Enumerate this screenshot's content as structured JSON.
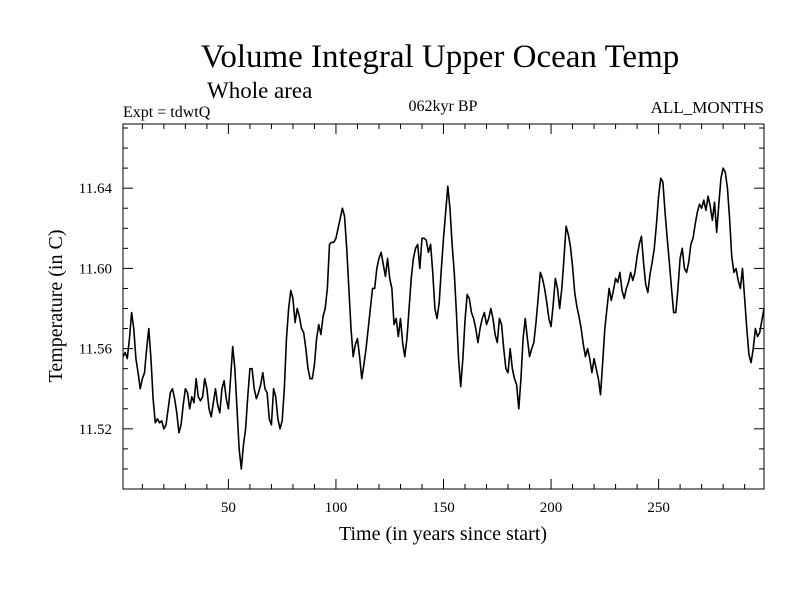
{
  "header": {
    "title": "Volume Integral Upper Ocean Temp",
    "subtitle": "Whole area",
    "experiment": "Expt = tdwtQ",
    "period": "062kyr BP",
    "months": "ALL_MONTHS"
  },
  "chart_data": {
    "type": "line",
    "title": "Volume Integral Upper Ocean Temp",
    "subtitle": "Whole area",
    "xlabel": "Time (in years since start)",
    "ylabel": "Temperature (in C)",
    "xlim": [
      1,
      299
    ],
    "ylim": [
      11.49,
      11.672
    ],
    "x_ticks": [
      50,
      100,
      150,
      200,
      250
    ],
    "x_tick_labels": [
      "50",
      "100",
      "150",
      "200",
      "250"
    ],
    "y_ticks": [
      11.52,
      11.56,
      11.6,
      11.64
    ],
    "y_tick_labels": [
      "11.52",
      "11.56",
      "11.60",
      "11.64"
    ],
    "x_minor_step": 10,
    "y_minor_step": 0.01,
    "grid": false,
    "series": [
      {
        "name": "Temperature",
        "points": [
          [
            1,
            11.556
          ],
          [
            2,
            11.558
          ],
          [
            3,
            11.555
          ],
          [
            4,
            11.565
          ],
          [
            5,
            11.578
          ],
          [
            6,
            11.57
          ],
          [
            7,
            11.555
          ],
          [
            8,
            11.548
          ],
          [
            9,
            11.54
          ],
          [
            10,
            11.545
          ],
          [
            11,
            11.548
          ],
          [
            12,
            11.56
          ],
          [
            13,
            11.57
          ],
          [
            14,
            11.555
          ],
          [
            15,
            11.535
          ],
          [
            16,
            11.523
          ],
          [
            17,
            11.525
          ],
          [
            18,
            11.523
          ],
          [
            19,
            11.524
          ],
          [
            20,
            11.52
          ],
          [
            21,
            11.522
          ],
          [
            22,
            11.53
          ],
          [
            23,
            11.538
          ],
          [
            24,
            11.54
          ],
          [
            25,
            11.535
          ],
          [
            26,
            11.528
          ],
          [
            27,
            11.518
          ],
          [
            28,
            11.522
          ],
          [
            29,
            11.532
          ],
          [
            30,
            11.54
          ],
          [
            31,
            11.538
          ],
          [
            32,
            11.53
          ],
          [
            33,
            11.536
          ],
          [
            34,
            11.533
          ],
          [
            35,
            11.545
          ],
          [
            36,
            11.536
          ],
          [
            37,
            11.534
          ],
          [
            38,
            11.536
          ],
          [
            39,
            11.545
          ],
          [
            40,
            11.54
          ],
          [
            41,
            11.53
          ],
          [
            42,
            11.526
          ],
          [
            43,
            11.533
          ],
          [
            44,
            11.54
          ],
          [
            45,
            11.532
          ],
          [
            46,
            11.528
          ],
          [
            47,
            11.54
          ],
          [
            48,
            11.544
          ],
          [
            49,
            11.535
          ],
          [
            50,
            11.53
          ],
          [
            51,
            11.545
          ],
          [
            52,
            11.561
          ],
          [
            53,
            11.55
          ],
          [
            54,
            11.53
          ],
          [
            55,
            11.51
          ],
          [
            56,
            11.5
          ],
          [
            57,
            11.512
          ],
          [
            58,
            11.52
          ],
          [
            59,
            11.536
          ],
          [
            60,
            11.55
          ],
          [
            61,
            11.55
          ],
          [
            62,
            11.54
          ],
          [
            63,
            11.535
          ],
          [
            64,
            11.538
          ],
          [
            65,
            11.542
          ],
          [
            66,
            11.548
          ],
          [
            67,
            11.54
          ],
          [
            68,
            11.538
          ],
          [
            69,
            11.525
          ],
          [
            70,
            11.522
          ],
          [
            71,
            11.54
          ],
          [
            72,
            11.536
          ],
          [
            73,
            11.525
          ],
          [
            74,
            11.52
          ],
          [
            75,
            11.524
          ],
          [
            76,
            11.54
          ],
          [
            77,
            11.565
          ],
          [
            78,
            11.58
          ],
          [
            79,
            11.589
          ],
          [
            80,
            11.585
          ],
          [
            81,
            11.573
          ],
          [
            82,
            11.58
          ],
          [
            83,
            11.576
          ],
          [
            84,
            11.57
          ],
          [
            85,
            11.568
          ],
          [
            86,
            11.56
          ],
          [
            87,
            11.55
          ],
          [
            88,
            11.545
          ],
          [
            89,
            11.545
          ],
          [
            90,
            11.552
          ],
          [
            91,
            11.565
          ],
          [
            92,
            11.572
          ],
          [
            93,
            11.567
          ],
          [
            94,
            11.576
          ],
          [
            95,
            11.58
          ],
          [
            96,
            11.59
          ],
          [
            97,
            11.612
          ],
          [
            98,
            11.613
          ],
          [
            99,
            11.613
          ],
          [
            100,
            11.615
          ],
          [
            101,
            11.62
          ],
          [
            102,
            11.625
          ],
          [
            103,
            11.63
          ],
          [
            104,
            11.626
          ],
          [
            105,
            11.61
          ],
          [
            106,
            11.59
          ],
          [
            107,
            11.57
          ],
          [
            108,
            11.556
          ],
          [
            109,
            11.562
          ],
          [
            110,
            11.565
          ],
          [
            111,
            11.556
          ],
          [
            112,
            11.545
          ],
          [
            113,
            11.552
          ],
          [
            114,
            11.56
          ],
          [
            115,
            11.57
          ],
          [
            116,
            11.58
          ],
          [
            117,
            11.59
          ],
          [
            118,
            11.59
          ],
          [
            119,
            11.6
          ],
          [
            120,
            11.605
          ],
          [
            121,
            11.608
          ],
          [
            122,
            11.602
          ],
          [
            123,
            11.596
          ],
          [
            124,
            11.605
          ],
          [
            125,
            11.595
          ],
          [
            126,
            11.59
          ],
          [
            127,
            11.572
          ],
          [
            128,
            11.575
          ],
          [
            129,
            11.566
          ],
          [
            130,
            11.575
          ],
          [
            131,
            11.563
          ],
          [
            132,
            11.556
          ],
          [
            133,
            11.565
          ],
          [
            134,
            11.58
          ],
          [
            135,
            11.595
          ],
          [
            136,
            11.605
          ],
          [
            137,
            11.61
          ],
          [
            138,
            11.612
          ],
          [
            139,
            11.6
          ],
          [
            140,
            11.615
          ],
          [
            141,
            11.615
          ],
          [
            142,
            11.614
          ],
          [
            143,
            11.608
          ],
          [
            144,
            11.612
          ],
          [
            145,
            11.598
          ],
          [
            146,
            11.58
          ],
          [
            147,
            11.575
          ],
          [
            148,
            11.583
          ],
          [
            149,
            11.6
          ],
          [
            150,
            11.615
          ],
          [
            151,
            11.628
          ],
          [
            152,
            11.641
          ],
          [
            153,
            11.63
          ],
          [
            154,
            11.612
          ],
          [
            155,
            11.598
          ],
          [
            156,
            11.578
          ],
          [
            157,
            11.555
          ],
          [
            158,
            11.541
          ],
          [
            159,
            11.555
          ],
          [
            160,
            11.574
          ],
          [
            161,
            11.587
          ],
          [
            162,
            11.585
          ],
          [
            163,
            11.578
          ],
          [
            164,
            11.575
          ],
          [
            165,
            11.57
          ],
          [
            166,
            11.563
          ],
          [
            167,
            11.57
          ],
          [
            168,
            11.575
          ],
          [
            169,
            11.578
          ],
          [
            170,
            11.572
          ],
          [
            171,
            11.575
          ],
          [
            172,
            11.58
          ],
          [
            173,
            11.575
          ],
          [
            174,
            11.567
          ],
          [
            175,
            11.563
          ],
          [
            176,
            11.575
          ],
          [
            177,
            11.572
          ],
          [
            178,
            11.56
          ],
          [
            179,
            11.55
          ],
          [
            180,
            11.548
          ],
          [
            181,
            11.56
          ],
          [
            182,
            11.55
          ],
          [
            183,
            11.545
          ],
          [
            184,
            11.542
          ],
          [
            185,
            11.53
          ],
          [
            186,
            11.545
          ],
          [
            187,
            11.565
          ],
          [
            188,
            11.575
          ],
          [
            189,
            11.565
          ],
          [
            190,
            11.556
          ],
          [
            191,
            11.56
          ],
          [
            192,
            11.563
          ],
          [
            193,
            11.573
          ],
          [
            194,
            11.585
          ],
          [
            195,
            11.598
          ],
          [
            196,
            11.595
          ],
          [
            197,
            11.59
          ],
          [
            198,
            11.583
          ],
          [
            199,
            11.575
          ],
          [
            200,
            11.571
          ],
          [
            201,
            11.582
          ],
          [
            202,
            11.595
          ],
          [
            203,
            11.59
          ],
          [
            204,
            11.58
          ],
          [
            205,
            11.59
          ],
          [
            206,
            11.605
          ],
          [
            207,
            11.621
          ],
          [
            208,
            11.617
          ],
          [
            209,
            11.611
          ],
          [
            210,
            11.601
          ],
          [
            211,
            11.588
          ],
          [
            212,
            11.581
          ],
          [
            213,
            11.576
          ],
          [
            214,
            11.57
          ],
          [
            215,
            11.562
          ],
          [
            216,
            11.556
          ],
          [
            217,
            11.56
          ],
          [
            218,
            11.555
          ],
          [
            219,
            11.548
          ],
          [
            220,
            11.555
          ],
          [
            221,
            11.55
          ],
          [
            222,
            11.545
          ],
          [
            223,
            11.537
          ],
          [
            224,
            11.553
          ],
          [
            225,
            11.57
          ],
          [
            226,
            11.58
          ],
          [
            227,
            11.59
          ],
          [
            228,
            11.584
          ],
          [
            229,
            11.589
          ],
          [
            230,
            11.595
          ],
          [
            231,
            11.593
          ],
          [
            232,
            11.598
          ],
          [
            233,
            11.589
          ],
          [
            234,
            11.585
          ],
          [
            235,
            11.59
          ],
          [
            236,
            11.593
          ],
          [
            237,
            11.598
          ],
          [
            238,
            11.594
          ],
          [
            239,
            11.598
          ],
          [
            240,
            11.606
          ],
          [
            241,
            11.612
          ],
          [
            242,
            11.616
          ],
          [
            243,
            11.603
          ],
          [
            244,
            11.592
          ],
          [
            245,
            11.588
          ],
          [
            246,
            11.597
          ],
          [
            247,
            11.603
          ],
          [
            248,
            11.61
          ],
          [
            249,
            11.622
          ],
          [
            250,
            11.636
          ],
          [
            251,
            11.645
          ],
          [
            252,
            11.643
          ],
          [
            253,
            11.628
          ],
          [
            254,
            11.615
          ],
          [
            255,
            11.603
          ],
          [
            256,
            11.59
          ],
          [
            257,
            11.578
          ],
          [
            258,
            11.578
          ],
          [
            259,
            11.59
          ],
          [
            260,
            11.605
          ],
          [
            261,
            11.61
          ],
          [
            262,
            11.6
          ],
          [
            263,
            11.598
          ],
          [
            264,
            11.603
          ],
          [
            265,
            11.612
          ],
          [
            266,
            11.615
          ],
          [
            267,
            11.622
          ],
          [
            268,
            11.628
          ],
          [
            269,
            11.632
          ],
          [
            270,
            11.63
          ],
          [
            271,
            11.634
          ],
          [
            272,
            11.629
          ],
          [
            273,
            11.636
          ],
          [
            274,
            11.631
          ],
          [
            275,
            11.624
          ],
          [
            276,
            11.633
          ],
          [
            277,
            11.618
          ],
          [
            278,
            11.632
          ],
          [
            279,
            11.645
          ],
          [
            280,
            11.65
          ],
          [
            281,
            11.648
          ],
          [
            282,
            11.64
          ],
          [
            283,
            11.625
          ],
          [
            284,
            11.606
          ],
          [
            285,
            11.598
          ],
          [
            286,
            11.6
          ],
          [
            287,
            11.594
          ],
          [
            288,
            11.59
          ],
          [
            289,
            11.6
          ],
          [
            290,
            11.585
          ],
          [
            291,
            11.57
          ],
          [
            292,
            11.557
          ],
          [
            293,
            11.553
          ],
          [
            294,
            11.56
          ],
          [
            295,
            11.57
          ],
          [
            296,
            11.566
          ],
          [
            297,
            11.568
          ],
          [
            298,
            11.574
          ],
          [
            299,
            11.58
          ]
        ]
      }
    ]
  }
}
